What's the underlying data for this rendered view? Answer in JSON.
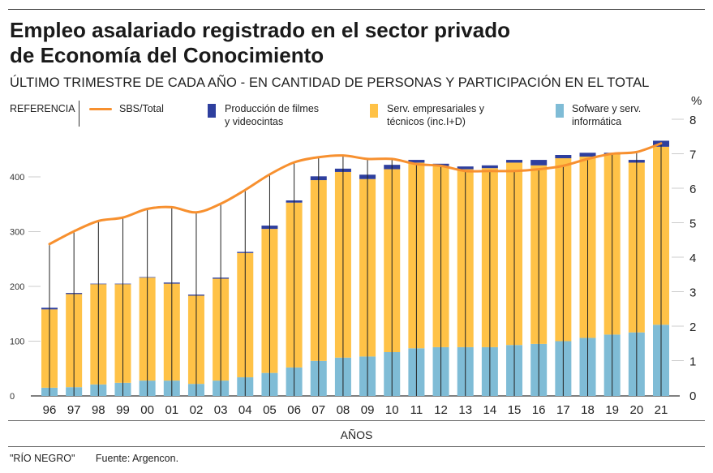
{
  "header": {
    "title_line1": "Empleo asalariado registrado en el sector privado",
    "title_line2": "de Economía del Conocimiento",
    "subtitle": "ÚLTIMO TRIMESTRE DE CADA AÑO - EN CANTIDAD DE PERSONAS Y PARTICIPACIÓN EN EL TOTAL"
  },
  "legend": {
    "title": "REFERENCIA",
    "line_label": "SBS/Total",
    "film_label_1": "Producción de filmes",
    "film_label_2": "y videocintas",
    "serv_label_1": "Serv. empresariales y",
    "serv_label_2": "técnicos (inc.I+D)",
    "soft_label_1": "Sofware y serv.",
    "soft_label_2": "informática"
  },
  "footer": {
    "source_brand": "\"RÍO NEGRO\"",
    "source": "Fuente: Argencon."
  },
  "chart_data": {
    "type": "bar",
    "stacked": true,
    "xlabel": "AÑOS",
    "ylabel_right": "%",
    "categories": [
      "96",
      "97",
      "98",
      "99",
      "00",
      "01",
      "02",
      "03",
      "04",
      "05",
      "06",
      "07",
      "08",
      "09",
      "10",
      "11",
      "12",
      "13",
      "14",
      "15",
      "16",
      "17",
      "18",
      "19",
      "20",
      "21"
    ],
    "ylim": [
      0,
      500
    ],
    "yticks": [
      0,
      100,
      200,
      300,
      400
    ],
    "ylim_right": [
      0,
      8
    ],
    "yticks_right": [
      0,
      1,
      2,
      3,
      4,
      5,
      6,
      7,
      8
    ],
    "grid": false,
    "legend_position": "top",
    "colors": {
      "software": "#7fbcd6",
      "serv": "#ffc247",
      "film": "#2e3f9e",
      "line": "#f7902f"
    },
    "series": [
      {
        "name": "Sofware y serv. informática",
        "values": [
          15,
          16,
          21,
          24,
          28,
          28,
          22,
          28,
          34,
          42,
          52,
          64,
          70,
          72,
          80,
          87,
          89,
          89,
          89,
          93,
          95,
          100,
          106,
          112,
          116,
          130
        ]
      },
      {
        "name": "Serv. empresariales y técnicos (inc.I+D)",
        "values": [
          143,
          170,
          183,
          180,
          188,
          177,
          161,
          186,
          227,
          263,
          301,
          330,
          339,
          324,
          334,
          339,
          331,
          325,
          327,
          333,
          326,
          334,
          331,
          329,
          310,
          325
        ]
      },
      {
        "name": "Producción de filmes y videocintas",
        "values": [
          3,
          2,
          1,
          1,
          1,
          2,
          2,
          2,
          2,
          6,
          4,
          7,
          6,
          8,
          8,
          5,
          4,
          5,
          5,
          5,
          10,
          6,
          7,
          3,
          5,
          11
        ]
      }
    ],
    "line_series": {
      "name": "SBS/Total",
      "axis": "right",
      "values": [
        4.38,
        4.75,
        5.05,
        5.15,
        5.4,
        5.45,
        5.3,
        5.55,
        5.95,
        6.4,
        6.75,
        6.9,
        6.95,
        6.85,
        6.85,
        6.7,
        6.65,
        6.5,
        6.5,
        6.5,
        6.55,
        6.65,
        6.85,
        7.0,
        7.05,
        7.3
      ]
    }
  }
}
